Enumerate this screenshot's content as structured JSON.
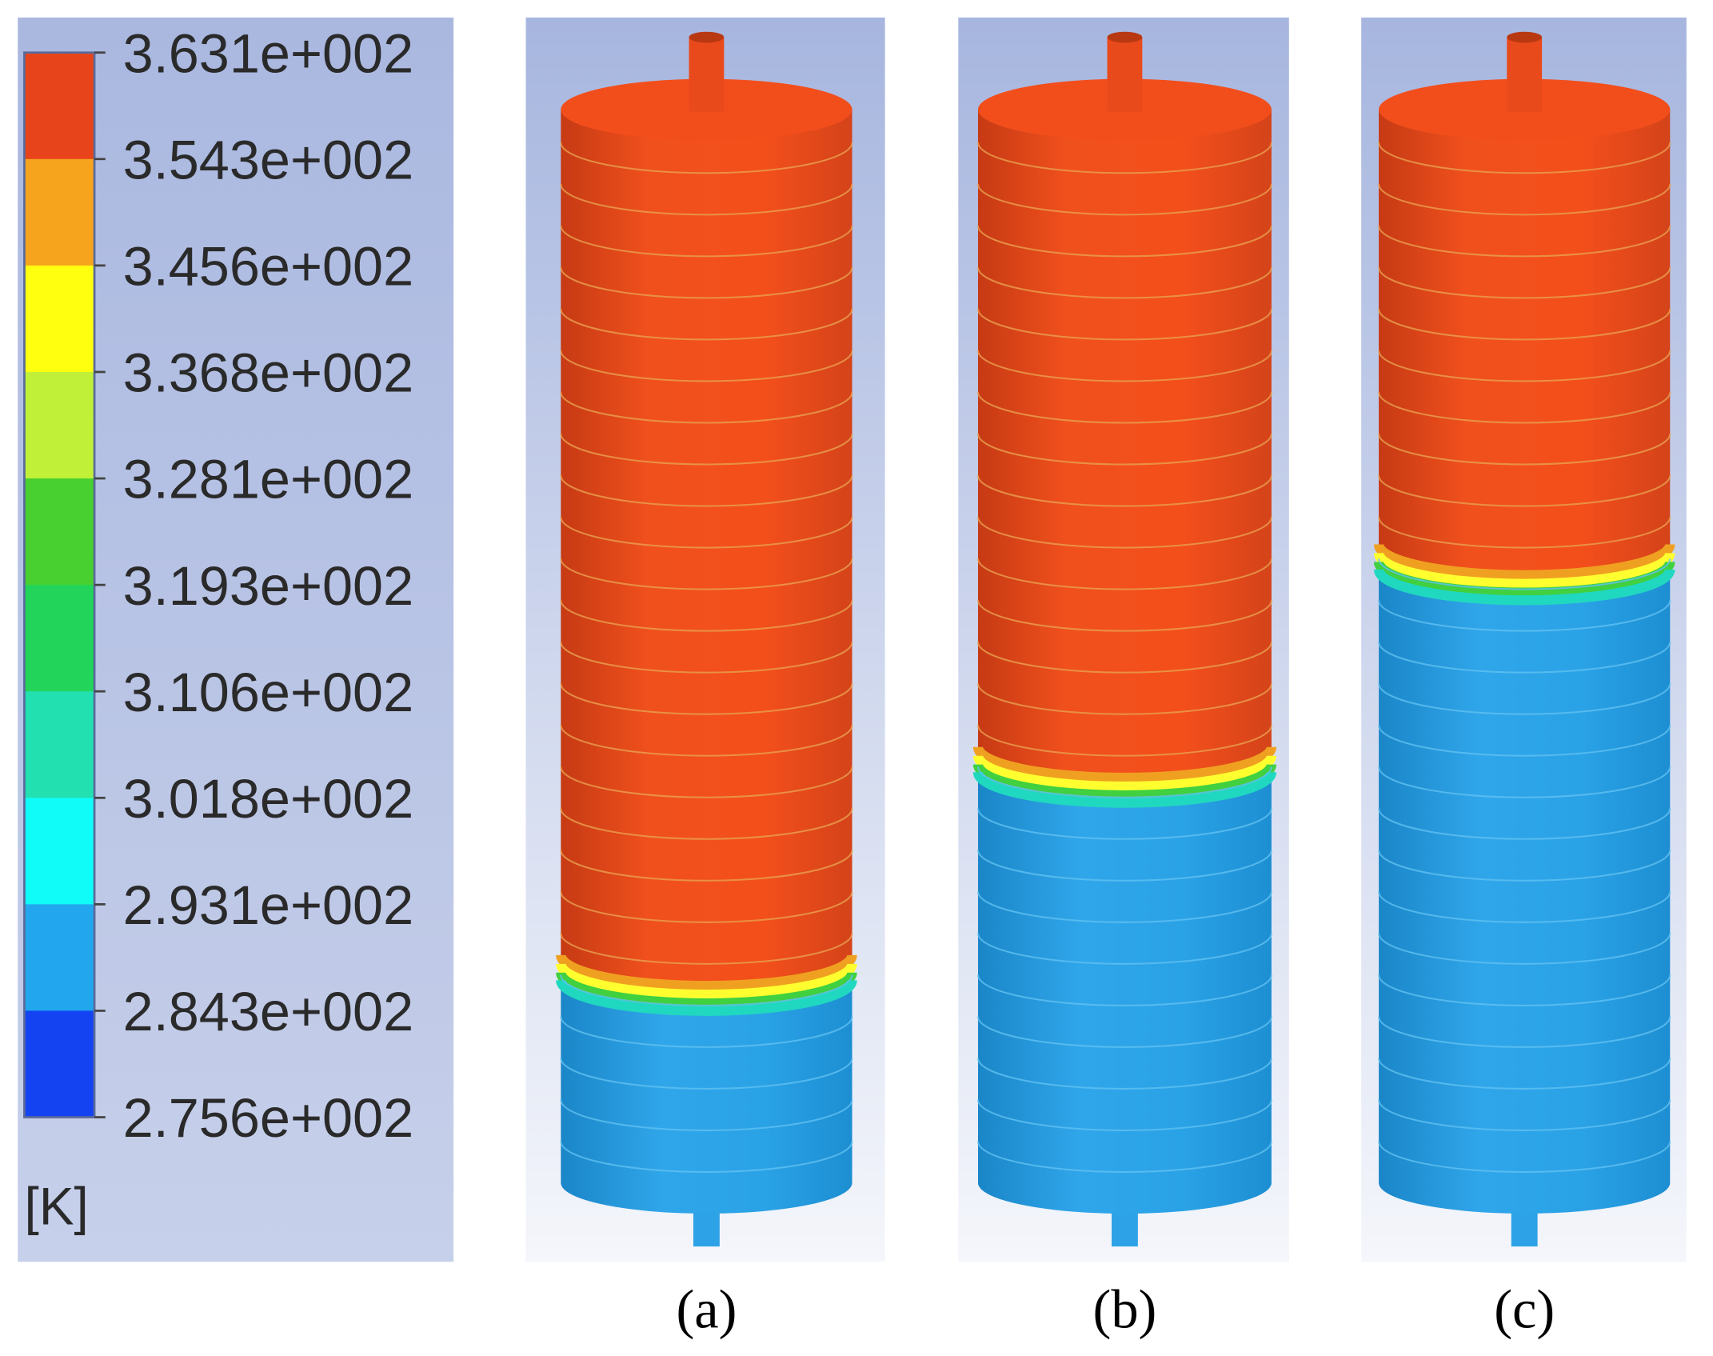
{
  "legend": {
    "ticks": [
      "3.631e+002",
      "3.543e+002",
      "3.456e+002",
      "3.368e+002",
      "3.281e+002",
      "3.193e+002",
      "3.106e+002",
      "3.018e+002",
      "2.931e+002",
      "2.843e+002",
      "2.756e+002"
    ],
    "unit": "[K]"
  },
  "panels": [
    {
      "label": "(a)"
    },
    {
      "label": "(b)"
    },
    {
      "label": "(c)"
    }
  ]
}
